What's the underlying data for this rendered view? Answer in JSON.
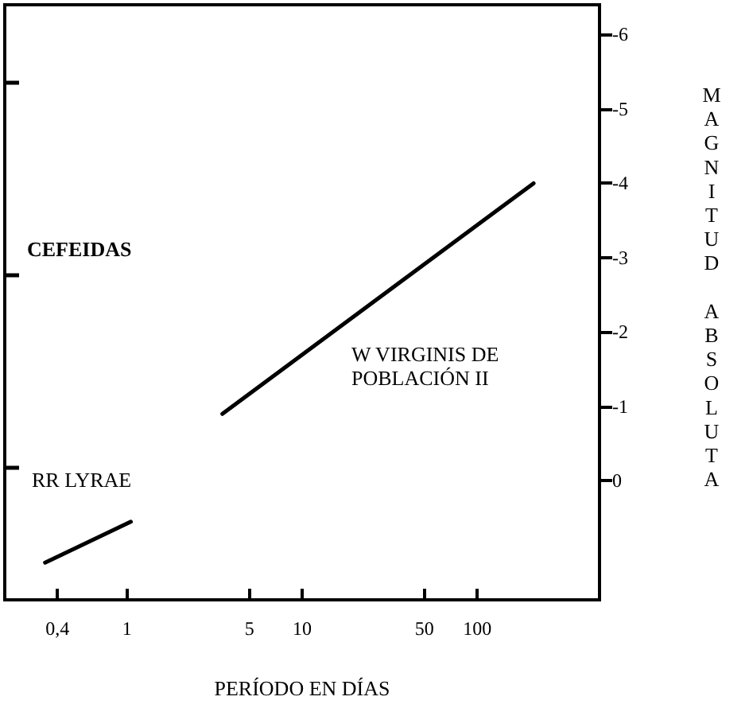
{
  "chart_data": {
    "type": "line",
    "xlabel": "PERÍODO EN DÍAS",
    "ylabel": "MAGNITUD ABSOLUTA",
    "annotations": [
      "CEFEIDAS"
    ],
    "series": [
      {
        "name": "RR LYRAE",
        "color": "#000000",
        "x": [
          0.34,
          1.05
        ],
        "values": [
          1.1,
          0.55
        ]
      },
      {
        "name": "W VIRGINIS DE POBLACIÓN II",
        "color": "#000000",
        "x": [
          3.5,
          210
        ],
        "values": [
          -0.9,
          -4.0
        ]
      }
    ],
    "log": "x",
    "xlim": [
      0.2,
      500
    ],
    "xticks": [
      {
        "value": 0.4,
        "label": "0,4"
      },
      1,
      5,
      10,
      50,
      100
    ],
    "ylim": [
      1.6,
      -6.4
    ],
    "yticks": [
      -6,
      -5,
      -4,
      -3,
      -2,
      -1,
      0
    ],
    "marker": "none",
    "line_style": "solid"
  }
}
